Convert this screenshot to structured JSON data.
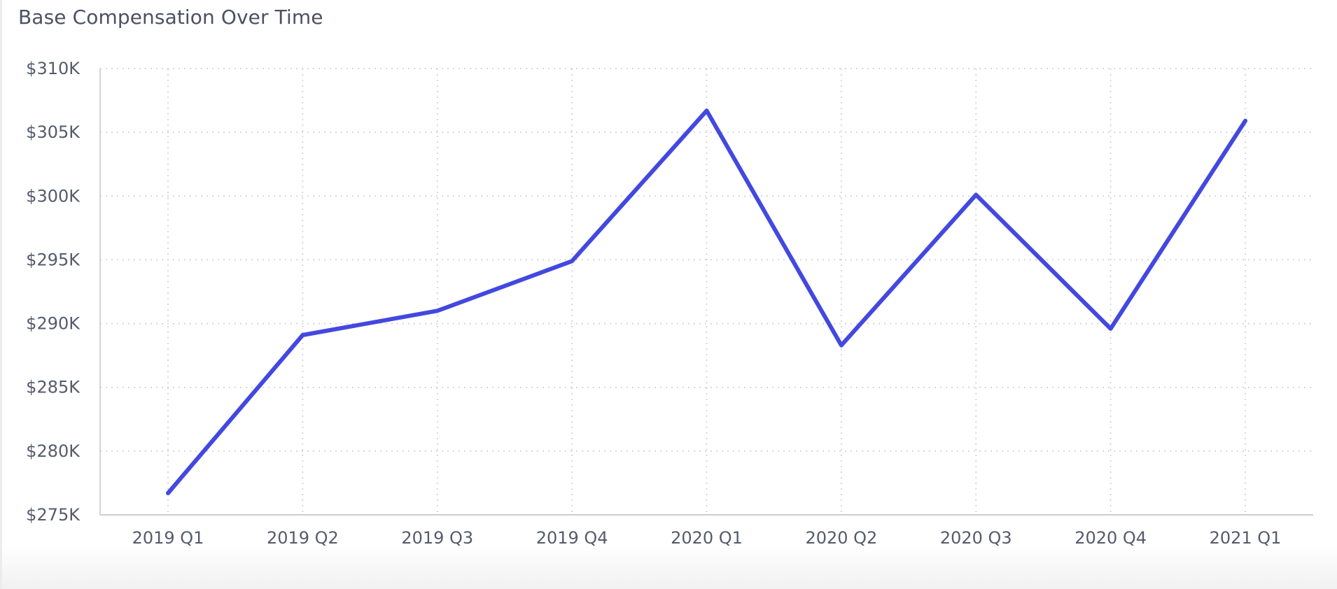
{
  "chart_data": {
    "type": "line",
    "title": "Base Compensation Over Time",
    "xlabel": "",
    "ylabel": "",
    "categories": [
      "2019 Q1",
      "2019 Q2",
      "2019 Q3",
      "2019 Q4",
      "2020 Q1",
      "2020 Q2",
      "2020 Q3",
      "2020 Q4",
      "2021 Q1"
    ],
    "series": [
      {
        "values": [
          276700,
          289100,
          291000,
          294900,
          306700,
          288300,
          300100,
          289600,
          305900
        ],
        "color": "#4348e0"
      }
    ],
    "ylim": [
      275000,
      310000
    ],
    "yticks": [
      275000,
      280000,
      285000,
      290000,
      295000,
      300000,
      305000,
      310000
    ],
    "ytick_labels": [
      "$275K",
      "$280K",
      "$285K",
      "$290K",
      "$295K",
      "$300K",
      "$305K",
      "$310K"
    ],
    "grid": true,
    "legend": "none"
  }
}
